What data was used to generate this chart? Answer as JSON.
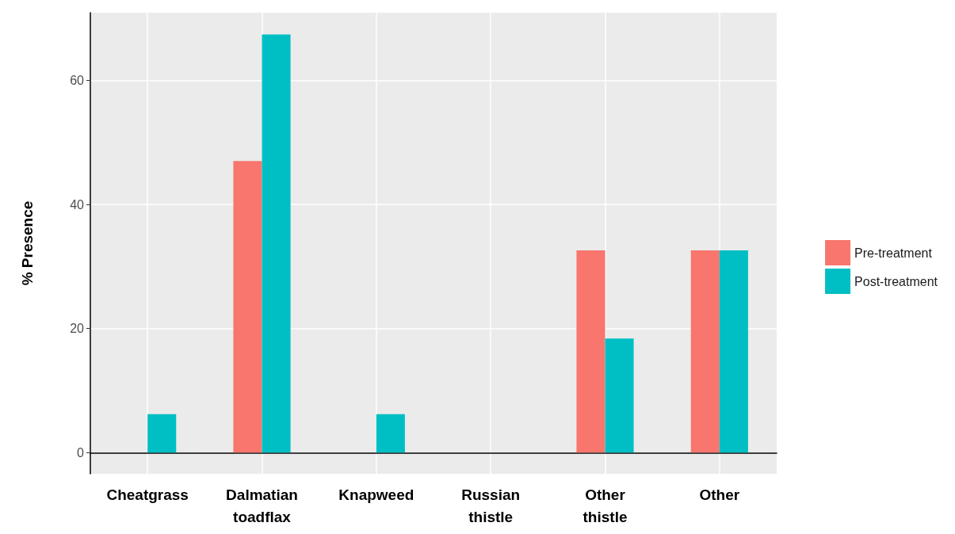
{
  "chart_data": {
    "type": "bar",
    "ylabel": "% Presence",
    "categories": [
      "Cheatgrass",
      "Dalmatian\ntoadflax",
      "Knapweed",
      "Russian\nthistle",
      "Other\nthistle",
      "Other"
    ],
    "series": [
      {
        "name": "Pre-treatment",
        "color": "#f8766d",
        "values": [
          0,
          47,
          0,
          0,
          32.6,
          32.6
        ]
      },
      {
        "name": "Post-treatment",
        "color": "#00bfc4",
        "values": [
          6.2,
          67.4,
          6.2,
          0,
          18.4,
          32.6
        ]
      }
    ],
    "ylim": [
      -3.4,
      70.9
    ],
    "yticks": [
      0,
      20,
      40,
      60
    ],
    "grid": true,
    "legend": "right"
  }
}
